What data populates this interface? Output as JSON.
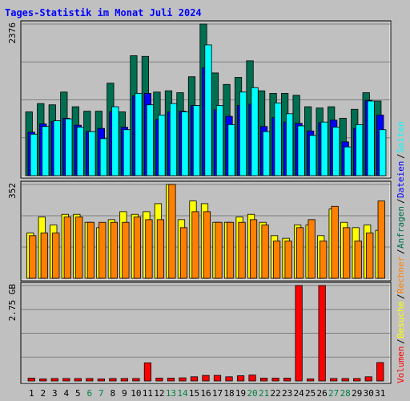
{
  "chart_data": {
    "title": "Tages-Statistik im Monat Juli 2024",
    "type": "bar",
    "days": [
      1,
      2,
      3,
      4,
      5,
      6,
      7,
      8,
      9,
      10,
      11,
      12,
      13,
      14,
      15,
      16,
      17,
      18,
      19,
      20,
      21,
      22,
      23,
      24,
      25,
      26,
      27,
      28,
      29,
      30,
      31
    ],
    "weekend_days": [
      6,
      7,
      13,
      14,
      20,
      21,
      27,
      28
    ],
    "colors": {
      "background": "#c0c0c0",
      "title": "#0000ff",
      "weekday_label": "#000000",
      "weekend_label": "#008040",
      "anfragen": "#006e51",
      "dateien": "#0000ff",
      "seiten": "#00ffff",
      "besuche": "#ffff00",
      "rechner": "#ff8000",
      "volumen": "#ff0000"
    },
    "panels": [
      {
        "id": "hits",
        "ymax_label": "2376",
        "ymax": 2376,
        "legend": [
          {
            "label": "Anfragen",
            "color": "#006e51"
          },
          {
            "label": "Dateien",
            "color": "#0000ff"
          },
          {
            "label": "Seiten",
            "color": "#00ffff"
          }
        ],
        "series": [
          {
            "name": "Anfragen",
            "color": "#006e51",
            "values": [
              1000,
              1130,
              1110,
              1310,
              1080,
              1010,
              1010,
              1450,
              1000,
              1880,
              1870,
              1310,
              1330,
              1300,
              1550,
              2376,
              1610,
              1430,
              1540,
              1800,
              1330,
              1290,
              1290,
              1260,
              1080,
              1060,
              1080,
              900,
              1040,
              1300,
              1170
            ]
          },
          {
            "name": "Dateien",
            "color": "#0000ff",
            "values": [
              680,
              810,
              850,
              900,
              790,
              690,
              740,
              1000,
              760,
              1250,
              1290,
              880,
              1000,
              1010,
              1100,
              1690,
              1030,
              930,
              1100,
              1120,
              770,
              910,
              840,
              820,
              700,
              830,
              870,
              530,
              740,
              1180,
              950
            ]
          },
          {
            "name": "Seiten",
            "color": "#00ffff",
            "values": [
              650,
              770,
              860,
              890,
              760,
              690,
              580,
              1080,
              720,
              1290,
              1110,
              950,
              1130,
              1000,
              1100,
              2050,
              1100,
              800,
              1310,
              1380,
              690,
              1140,
              970,
              780,
              630,
              840,
              760,
              450,
              800,
              1170,
              720
            ]
          }
        ]
      },
      {
        "id": "visits",
        "ymax_label": "352",
        "ymax": 352,
        "legend": [
          {
            "label": "Besuche",
            "color": "#ffff00"
          },
          {
            "label": "Rechner",
            "color": "#ff8000"
          }
        ],
        "series": [
          {
            "name": "Besuche",
            "color": "#ffff00",
            "values": [
              170,
              230,
              200,
              240,
              240,
              210,
              190,
              220,
              250,
              240,
              250,
              280,
              352,
              220,
              290,
              280,
              210,
              210,
              230,
              240,
              210,
              160,
              150,
              200,
              200,
              160,
              260,
              210,
              190,
              200,
              180
            ]
          },
          {
            "name": "Rechner",
            "color": "#ff8000",
            "values": [
              160,
              170,
              170,
              230,
              230,
              210,
              210,
              210,
              210,
              230,
              220,
              220,
              352,
              190,
              250,
              250,
              210,
              210,
              210,
              220,
              200,
              140,
              140,
              190,
              220,
              140,
              270,
              190,
              140,
              170,
              290
            ]
          }
        ]
      },
      {
        "id": "volume",
        "ymax_label": "2.75 GB",
        "ymax": 2.75,
        "unit": "GB",
        "legend": [
          {
            "label": "Volumen",
            "color": "#ff0000"
          }
        ],
        "series": [
          {
            "name": "Volumen",
            "color": "#ff0000",
            "values": [
              0.08,
              0.06,
              0.07,
              0.07,
              0.07,
              0.07,
              0.06,
              0.07,
              0.07,
              0.07,
              0.52,
              0.08,
              0.08,
              0.09,
              0.12,
              0.16,
              0.16,
              0.12,
              0.15,
              0.17,
              0.08,
              0.08,
              0.08,
              2.75,
              0.06,
              2.75,
              0.07,
              0.07,
              0.07,
              0.12,
              0.53
            ]
          }
        ]
      }
    ]
  }
}
